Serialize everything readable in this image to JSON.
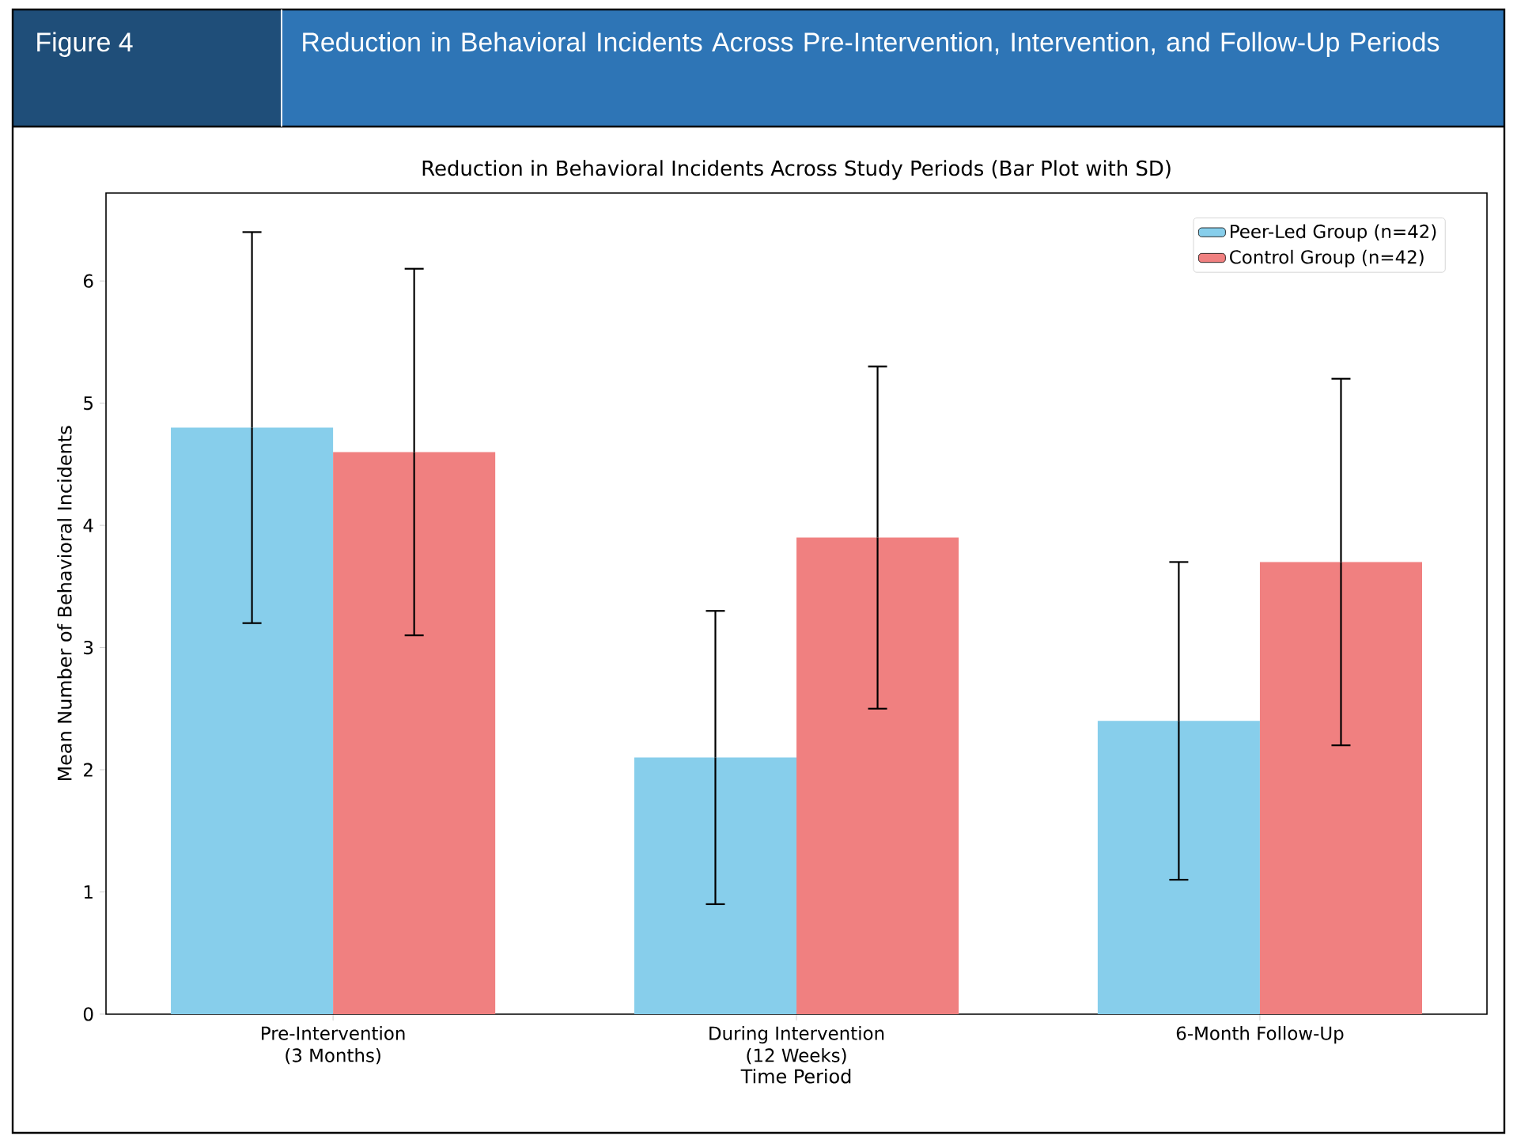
{
  "chart_data": {
    "type": "bar",
    "title": "Reduction in Behavioral Incidents Across Pre-Intervention, Intervention, and Follow-Up Periods",
    "subtitle": "Reduction in Behavioral Incidents Across Study Periods (Bar Plot with SD)",
    "annotations": [
      "Figure 4"
    ],
    "xlabel": "Time Period",
    "ylabel": "Mean Number of Behavioral Incidents",
    "categories": [
      "Pre-Intervention\n(3 Months)",
      "During Intervention\n(12 Weeks)",
      "6-Month Follow-Up"
    ],
    "series": [
      {
        "name": "Peer-Led Group (n=42)",
        "color": "#87ceeb",
        "values": [
          4.8,
          2.1,
          2.4
        ],
        "errors": [
          1.6,
          1.2,
          1.3
        ]
      },
      {
        "name": "Control Group (n=42)",
        "color": "#f08080",
        "values": [
          4.6,
          3.9,
          3.7
        ],
        "errors": [
          1.5,
          1.4,
          1.5
        ]
      }
    ],
    "ylim": [
      0,
      6.72
    ],
    "yticks": [
      0,
      1,
      2,
      3,
      4,
      5,
      6
    ],
    "legend": "top right"
  }
}
